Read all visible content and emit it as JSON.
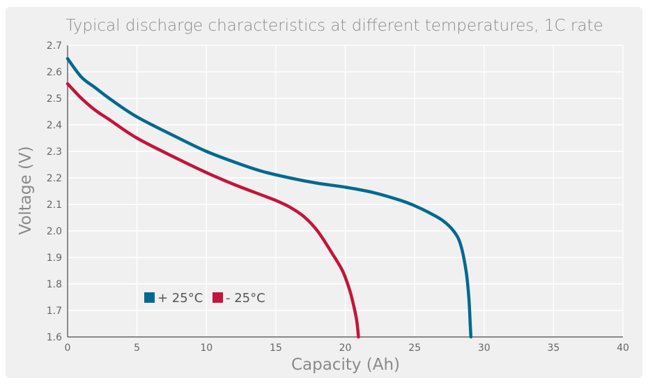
{
  "chart_data": {
    "type": "line",
    "title": "Typical discharge characteristics at different temperatures, 1C rate",
    "xlabel": "Capacity (Ah)",
    "ylabel": "Voltage (V)",
    "xlim": [
      0,
      40
    ],
    "ylim": [
      1.6,
      2.7
    ],
    "xticks": [
      "0",
      "5",
      "10",
      "15",
      "20",
      "25",
      "30",
      "35",
      "40"
    ],
    "yticks": [
      "1.6",
      "1.7",
      "1.8",
      "1.9",
      "2.0",
      "2.1",
      "2.2",
      "2.3",
      "2.4",
      "2.5",
      "2.6",
      "2.7"
    ],
    "grid": true,
    "legend_position": "lower-left",
    "series": [
      {
        "name": "+ 25°C",
        "color": "#00698f",
        "x": [
          0,
          1,
          2,
          3,
          5,
          8,
          10,
          12,
          14,
          16,
          18,
          20,
          22,
          24,
          25,
          26,
          27,
          27.8,
          28.3,
          28.7,
          28.9,
          29.0,
          29.05
        ],
        "y": [
          2.65,
          2.58,
          2.54,
          2.5,
          2.43,
          2.35,
          2.3,
          2.26,
          2.225,
          2.2,
          2.18,
          2.165,
          2.145,
          2.115,
          2.095,
          2.07,
          2.04,
          2.0,
          1.95,
          1.85,
          1.75,
          1.65,
          1.6
        ]
      },
      {
        "name": "- 25°C",
        "color": "#c3143c",
        "x": [
          0,
          1,
          2,
          3,
          5,
          8,
          10,
          12,
          14,
          15,
          16,
          17,
          18,
          19,
          19.8,
          20.3,
          20.6,
          20.8,
          20.9,
          20.95
        ],
        "y": [
          2.555,
          2.5,
          2.455,
          2.42,
          2.35,
          2.27,
          2.22,
          2.175,
          2.135,
          2.115,
          2.09,
          2.055,
          2.0,
          1.92,
          1.85,
          1.78,
          1.72,
          1.67,
          1.63,
          1.6
        ]
      }
    ]
  }
}
